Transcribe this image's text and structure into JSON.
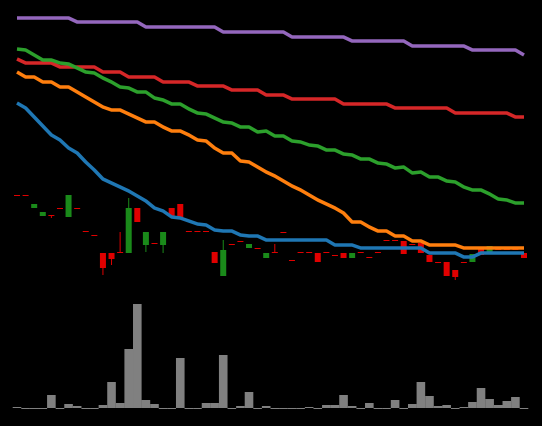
{
  "chart_data": [
    {
      "type": "candlestick",
      "ylim": [
        0,
        275
      ],
      "up_color": "#1a8a1a",
      "down_color": "#e00000",
      "open": [
        90,
        90,
        77,
        69,
        70,
        77,
        68,
        77,
        54,
        50,
        32,
        32,
        33,
        32,
        77,
        40,
        42,
        40,
        77,
        81,
        54,
        54,
        54,
        33,
        9,
        41,
        44,
        37,
        37,
        27,
        33,
        53,
        25,
        33,
        33,
        32,
        33,
        30,
        32,
        27,
        33,
        28,
        33,
        45,
        45,
        44,
        41,
        42,
        30,
        23,
        23,
        15,
        23,
        23,
        36,
        33,
        36,
        36,
        36,
        32
      ],
      "high": [
        90,
        90,
        81,
        73,
        70,
        77,
        90,
        77,
        54,
        50,
        32,
        32,
        53,
        87,
        77,
        53,
        42,
        53,
        77,
        81,
        54,
        54,
        54,
        33,
        45,
        41,
        44,
        41,
        37,
        32,
        41,
        53,
        25,
        33,
        33,
        32,
        33,
        30,
        32,
        32,
        33,
        28,
        33,
        45,
        45,
        44,
        41,
        42,
        30,
        23,
        23,
        15,
        23,
        31,
        36,
        39,
        36,
        36,
        36,
        32
      ],
      "low": [
        90,
        90,
        77,
        69,
        67,
        77,
        68,
        77,
        54,
        50,
        10,
        20,
        33,
        32,
        63,
        33,
        42,
        32,
        69,
        67,
        54,
        54,
        54,
        22,
        9,
        41,
        44,
        37,
        37,
        27,
        33,
        53,
        25,
        33,
        33,
        23,
        33,
        30,
        27,
        27,
        33,
        28,
        33,
        45,
        45,
        31,
        41,
        32,
        23,
        23,
        9,
        5,
        23,
        23,
        30,
        33,
        36,
        36,
        36,
        27
      ],
      "close": [
        90,
        90,
        81,
        73,
        70,
        77,
        90,
        77,
        54,
        50,
        17,
        26,
        33,
        77,
        63,
        53,
        42,
        53,
        69,
        67,
        54,
        54,
        54,
        22,
        35,
        41,
        44,
        41,
        37,
        32,
        33,
        53,
        25,
        33,
        33,
        23,
        33,
        30,
        27,
        32,
        33,
        28,
        33,
        45,
        45,
        31,
        41,
        32,
        23,
        23,
        9,
        8,
        23,
        31,
        30,
        39,
        36,
        36,
        36,
        27
      ],
      "series": [
        {
          "color": "#9467bd",
          "values": [
            267,
            267,
            267,
            267,
            267,
            267,
            267,
            263,
            263,
            263,
            263,
            263,
            263,
            263,
            263,
            258,
            258,
            258,
            258,
            258,
            258,
            258,
            258,
            258,
            253,
            253,
            253,
            253,
            253,
            253,
            253,
            253,
            248,
            248,
            248,
            248,
            248,
            248,
            248,
            244,
            244,
            244,
            244,
            244,
            244,
            244,
            239,
            239,
            239,
            239,
            239,
            239,
            239,
            235,
            235,
            235,
            235,
            235,
            235,
            230
          ]
        },
        {
          "color": "#d62728",
          "values": [
            226,
            222,
            222,
            222,
            222,
            218,
            218,
            218,
            218,
            218,
            213,
            213,
            213,
            208,
            208,
            208,
            208,
            203,
            203,
            203,
            203,
            199,
            199,
            199,
            199,
            195,
            195,
            195,
            195,
            190,
            190,
            190,
            186,
            186,
            186,
            186,
            186,
            186,
            181,
            181,
            181,
            181,
            181,
            181,
            177,
            177,
            177,
            177,
            177,
            177,
            177,
            172,
            172,
            172,
            172,
            172,
            172,
            172,
            168,
            168
          ]
        },
        {
          "color": "#2ca02c",
          "values": [
            236,
            235,
            230,
            225,
            225,
            222,
            221,
            217,
            213,
            212,
            207,
            203,
            198,
            197,
            193,
            193,
            187,
            185,
            181,
            181,
            176,
            172,
            171,
            167,
            163,
            162,
            158,
            158,
            153,
            154,
            149,
            149,
            144,
            143,
            140,
            139,
            135,
            135,
            131,
            130,
            126,
            126,
            122,
            121,
            117,
            118,
            112,
            113,
            108,
            108,
            104,
            103,
            98,
            95,
            95,
            91,
            86,
            85,
            82,
            82
          ]
        },
        {
          "color": "#ff7f0e",
          "values": [
            213,
            208,
            208,
            203,
            203,
            198,
            198,
            193,
            188,
            183,
            178,
            175,
            175,
            171,
            167,
            163,
            163,
            158,
            154,
            154,
            150,
            145,
            144,
            137,
            132,
            132,
            124,
            123,
            118,
            113,
            109,
            104,
            99,
            95,
            90,
            85,
            81,
            77,
            72,
            63,
            63,
            58,
            54,
            54,
            49,
            49,
            44,
            44,
            40,
            40,
            40,
            40,
            37,
            37,
            37,
            37,
            37,
            37,
            37,
            37
          ]
        },
        {
          "color": "#1f77b4",
          "values": [
            182,
            177,
            168,
            159,
            150,
            145,
            137,
            132,
            123,
            115,
            106,
            102,
            98,
            94,
            89,
            84,
            77,
            74,
            68,
            67,
            64,
            61,
            60,
            55,
            54,
            54,
            50,
            49,
            49,
            45,
            45,
            45,
            45,
            45,
            45,
            45,
            45,
            40,
            40,
            40,
            37,
            37,
            37,
            37,
            37,
            37,
            37,
            37,
            32,
            32,
            32,
            32,
            28,
            28,
            32,
            32,
            32,
            32,
            32,
            32
          ]
        }
      ]
    },
    {
      "type": "bar",
      "ylim": [
        0,
        104
      ],
      "color": "#808080",
      "values": [
        1,
        0,
        0,
        0,
        13,
        0,
        4,
        2,
        0,
        0,
        3,
        26,
        5,
        59,
        104,
        8,
        4,
        0,
        0,
        50,
        0,
        0,
        5,
        5,
        53,
        0,
        2,
        16,
        0,
        2,
        0,
        0,
        0,
        0,
        1,
        0,
        3,
        3,
        13,
        2,
        0,
        5,
        0,
        0,
        8,
        0,
        4,
        26,
        12,
        2,
        3,
        0,
        1,
        6,
        20,
        9,
        3,
        7,
        11,
        0
      ]
    }
  ]
}
